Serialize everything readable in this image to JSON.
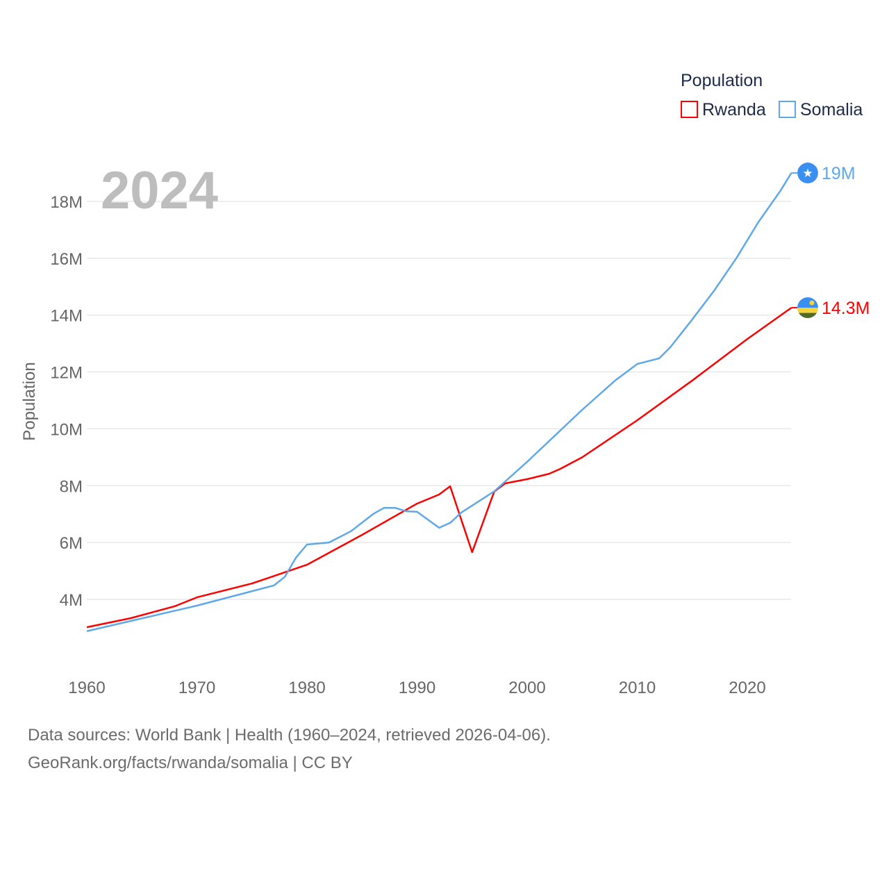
{
  "chart_data": {
    "type": "line",
    "title": "Population",
    "year_label": "2024",
    "ylabel": "Population",
    "xlabel": "",
    "xlim": [
      1960,
      2024
    ],
    "ylim": [
      2,
      19
    ],
    "x_ticks": [
      "1960",
      "1970",
      "1980",
      "1990",
      "2000",
      "2010",
      "2020"
    ],
    "y_ticks": [
      {
        "v": 4,
        "label": "4M"
      },
      {
        "v": 6,
        "label": "6M"
      },
      {
        "v": 8,
        "label": "8M"
      },
      {
        "v": 10,
        "label": "10M"
      },
      {
        "v": 12,
        "label": "12M"
      },
      {
        "v": 14,
        "label": "14M"
      },
      {
        "v": 16,
        "label": "16M"
      },
      {
        "v": 18,
        "label": "18M"
      }
    ],
    "grid": true,
    "legend_position": "top-right",
    "series": [
      {
        "name": "Rwanda",
        "color": "#ff0000",
        "end_label": "14.3M",
        "flag": "rwanda-flag",
        "points": [
          [
            1960,
            3.02
          ],
          [
            1964,
            3.34
          ],
          [
            1968,
            3.76
          ],
          [
            1970,
            4.07
          ],
          [
            1975,
            4.56
          ],
          [
            1980,
            5.22
          ],
          [
            1985,
            6.27
          ],
          [
            1990,
            7.37
          ],
          [
            1992,
            7.69
          ],
          [
            1993,
            7.98
          ],
          [
            1995,
            5.66
          ],
          [
            1997,
            7.79
          ],
          [
            1998,
            8.08
          ],
          [
            2000,
            8.23
          ],
          [
            2002,
            8.42
          ],
          [
            2003,
            8.59
          ],
          [
            2005,
            9.0
          ],
          [
            2010,
            10.3
          ],
          [
            2015,
            11.7
          ],
          [
            2020,
            13.16
          ],
          [
            2024,
            14.26
          ]
        ]
      },
      {
        "name": "Somalia",
        "color": "#5ea8ea",
        "end_label": "19M",
        "flag": "somalia-flag",
        "points": [
          [
            1960,
            2.88
          ],
          [
            1970,
            3.78
          ],
          [
            1977,
            4.49
          ],
          [
            1978,
            4.8
          ],
          [
            1979,
            5.47
          ],
          [
            1980,
            5.93
          ],
          [
            1982,
            6.0
          ],
          [
            1984,
            6.4
          ],
          [
            1986,
            7.0
          ],
          [
            1987,
            7.22
          ],
          [
            1988,
            7.22
          ],
          [
            1989,
            7.1
          ],
          [
            1990,
            7.08
          ],
          [
            1991,
            6.8
          ],
          [
            1992,
            6.52
          ],
          [
            1993,
            6.69
          ],
          [
            1994,
            7.05
          ],
          [
            1995,
            7.3
          ],
          [
            1997,
            7.8
          ],
          [
            2000,
            8.84
          ],
          [
            2005,
            10.67
          ],
          [
            2008,
            11.7
          ],
          [
            2010,
            12.28
          ],
          [
            2012,
            12.48
          ],
          [
            2013,
            12.87
          ],
          [
            2015,
            13.85
          ],
          [
            2017,
            14.87
          ],
          [
            2019,
            16.0
          ],
          [
            2021,
            17.27
          ],
          [
            2023,
            18.37
          ],
          [
            2024,
            19.0
          ]
        ]
      }
    ]
  },
  "footer": {
    "line1": "Data sources: World Bank | Health (1960–2024, retrieved 2026-04-06).",
    "line2": "GeoRank.org/facts/rwanda/somalia | CC BY"
  }
}
